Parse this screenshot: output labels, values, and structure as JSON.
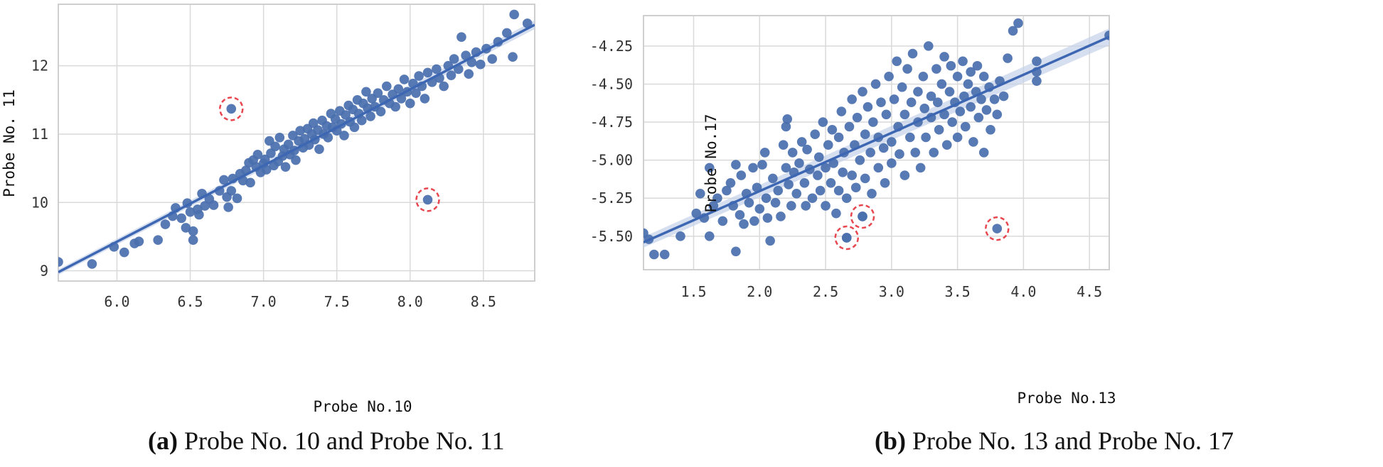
{
  "colors": {
    "point": "#4a6fae",
    "line": "#3d67b2",
    "band": "#c5d1e8",
    "grid": "#d9d9d9",
    "frame": "#cfcfcf",
    "highlight": "#e8474f"
  },
  "chart_data": [
    {
      "type": "scatter",
      "panel_tag": "(a)",
      "panel_caption": "Probe No. 10 and Probe No. 11",
      "xlabel": "Probe No.10",
      "ylabel": "Probe No. 11",
      "xlim": [
        5.6,
        8.85
      ],
      "ylim": [
        8.85,
        12.9
      ],
      "xticks": [
        6.0,
        6.5,
        7.0,
        7.5,
        8.0,
        8.5
      ],
      "xtick_labels": [
        "6.0",
        "6.5",
        "7.0",
        "7.5",
        "8.0",
        "8.5"
      ],
      "yticks": [
        9,
        10,
        11,
        12
      ],
      "ytick_labels": [
        "9",
        "10",
        "11",
        "12"
      ],
      "grid": true,
      "fit_line": {
        "x0": 5.6,
        "y0": 8.98,
        "x1": 8.85,
        "y1": 12.6,
        "band": 0.04
      },
      "points": [
        [
          5.6,
          9.13
        ],
        [
          5.83,
          9.1
        ],
        [
          5.98,
          9.35
        ],
        [
          6.05,
          9.27
        ],
        [
          6.12,
          9.4
        ],
        [
          6.15,
          9.43
        ],
        [
          6.28,
          9.45
        ],
        [
          6.33,
          9.68
        ],
        [
          6.38,
          9.8
        ],
        [
          6.4,
          9.92
        ],
        [
          6.44,
          9.77
        ],
        [
          6.47,
          9.63
        ],
        [
          6.48,
          9.99
        ],
        [
          6.5,
          9.86
        ],
        [
          6.52,
          9.45
        ],
        [
          6.52,
          9.58
        ],
        [
          6.55,
          9.9
        ],
        [
          6.56,
          9.82
        ],
        [
          6.58,
          10.13
        ],
        [
          6.6,
          9.95
        ],
        [
          6.63,
          10.05
        ],
        [
          6.66,
          9.96
        ],
        [
          6.7,
          10.17
        ],
        [
          6.73,
          10.33
        ],
        [
          6.75,
          10.08
        ],
        [
          6.76,
          9.93
        ],
        [
          6.78,
          10.17
        ],
        [
          6.79,
          10.35
        ],
        [
          6.82,
          10.06
        ],
        [
          6.84,
          10.42
        ],
        [
          6.86,
          10.32
        ],
        [
          6.88,
          10.47
        ],
        [
          6.9,
          10.58
        ],
        [
          6.91,
          10.29
        ],
        [
          6.93,
          10.62
        ],
        [
          6.95,
          10.52
        ],
        [
          6.96,
          10.7
        ],
        [
          6.98,
          10.44
        ],
        [
          7.0,
          10.57
        ],
        [
          7.01,
          10.63
        ],
        [
          7.02,
          10.48
        ],
        [
          7.04,
          10.9
        ],
        [
          7.05,
          10.72
        ],
        [
          7.07,
          10.54
        ],
        [
          7.08,
          10.82
        ],
        [
          7.1,
          10.6
        ],
        [
          7.11,
          10.95
        ],
        [
          7.13,
          10.68
        ],
        [
          7.14,
          10.78
        ],
        [
          7.15,
          10.52
        ],
        [
          7.17,
          10.85
        ],
        [
          7.18,
          10.7
        ],
        [
          7.2,
          10.98
        ],
        [
          7.21,
          10.76
        ],
        [
          7.22,
          10.62
        ],
        [
          7.24,
          10.9
        ],
        [
          7.25,
          11.05
        ],
        [
          7.27,
          10.8
        ],
        [
          7.28,
          10.93
        ],
        [
          7.3,
          11.08
        ],
        [
          7.31,
          10.84
        ],
        [
          7.33,
          11.0
        ],
        [
          7.34,
          11.16
        ],
        [
          7.35,
          10.92
        ],
        [
          7.37,
          11.06
        ],
        [
          7.38,
          10.78
        ],
        [
          7.4,
          11.2
        ],
        [
          7.41,
          11.0
        ],
        [
          7.43,
          11.12
        ],
        [
          7.44,
          10.95
        ],
        [
          7.46,
          11.3
        ],
        [
          7.47,
          11.1
        ],
        [
          7.49,
          11.22
        ],
        [
          7.5,
          11.05
        ],
        [
          7.52,
          11.34
        ],
        [
          7.53,
          11.15
        ],
        [
          7.55,
          10.98
        ],
        [
          7.56,
          11.28
        ],
        [
          7.58,
          11.42
        ],
        [
          7.59,
          11.18
        ],
        [
          7.61,
          11.36
        ],
        [
          7.62,
          11.1
        ],
        [
          7.64,
          11.5
        ],
        [
          7.65,
          11.3
        ],
        [
          7.67,
          11.2
        ],
        [
          7.68,
          11.45
        ],
        [
          7.7,
          11.62
        ],
        [
          7.71,
          11.38
        ],
        [
          7.73,
          11.26
        ],
        [
          7.74,
          11.52
        ],
        [
          7.76,
          11.4
        ],
        [
          7.78,
          11.6
        ],
        [
          7.8,
          11.33
        ],
        [
          7.82,
          11.5
        ],
        [
          7.84,
          11.7
        ],
        [
          7.86,
          11.45
        ],
        [
          7.88,
          11.58
        ],
        [
          7.9,
          11.4
        ],
        [
          7.92,
          11.66
        ],
        [
          7.94,
          11.52
        ],
        [
          7.96,
          11.8
        ],
        [
          7.98,
          11.62
        ],
        [
          8.0,
          11.45
        ],
        [
          8.02,
          11.74
        ],
        [
          8.04,
          11.6
        ],
        [
          8.06,
          11.85
        ],
        [
          8.08,
          11.7
        ],
        [
          8.1,
          11.52
        ],
        [
          8.12,
          11.9
        ],
        [
          8.15,
          11.76
        ],
        [
          8.18,
          11.95
        ],
        [
          8.2,
          11.82
        ],
        [
          8.23,
          11.7
        ],
        [
          8.26,
          12.0
        ],
        [
          8.28,
          11.86
        ],
        [
          8.3,
          12.1
        ],
        [
          8.33,
          11.95
        ],
        [
          8.35,
          12.42
        ],
        [
          8.38,
          12.15
        ],
        [
          8.4,
          11.88
        ],
        [
          8.42,
          12.05
        ],
        [
          8.45,
          12.2
        ],
        [
          8.48,
          12.02
        ],
        [
          8.52,
          12.25
        ],
        [
          8.56,
          12.1
        ],
        [
          8.6,
          12.35
        ],
        [
          8.66,
          12.48
        ],
        [
          8.7,
          12.13
        ],
        [
          8.71,
          12.75
        ],
        [
          8.8,
          12.62
        ],
        [
          6.78,
          11.37
        ],
        [
          8.12,
          10.04
        ]
      ],
      "highlighted": [
        [
          6.78,
          11.37
        ],
        [
          8.12,
          10.04
        ]
      ]
    },
    {
      "type": "scatter",
      "panel_tag": "(b)",
      "panel_caption": "Probe No. 13 and Probe No. 17",
      "xlabel": "Probe No.13",
      "ylabel": "Probe No.17",
      "xlim": [
        1.12,
        4.65
      ],
      "ylim": [
        -5.72,
        -4.05
      ],
      "xticks": [
        1.5,
        2.0,
        2.5,
        3.0,
        3.5,
        4.0,
        4.5
      ],
      "xtick_labels": [
        "1.5",
        "2.0",
        "2.5",
        "3.0",
        "3.5",
        "4.0",
        "4.5"
      ],
      "yticks": [
        -5.5,
        -5.25,
        -5.0,
        -4.75,
        -4.5,
        -4.25
      ],
      "ytick_labels": [
        "-5.50",
        "-5.25",
        "-5.00",
        "-4.75",
        "-4.50",
        "-4.25"
      ],
      "grid": true,
      "fit_line": {
        "x0": 1.12,
        "y0": -5.54,
        "x1": 4.65,
        "y1": -4.19,
        "band": 0.035
      },
      "points": [
        [
          1.12,
          -5.48
        ],
        [
          1.16,
          -5.52
        ],
        [
          1.2,
          -5.62
        ],
        [
          1.28,
          -5.62
        ],
        [
          1.4,
          -5.5
        ],
        [
          1.52,
          -5.35
        ],
        [
          1.55,
          -5.22
        ],
        [
          1.58,
          -5.38
        ],
        [
          1.62,
          -5.05
        ],
        [
          1.62,
          -5.5
        ],
        [
          1.65,
          -5.3
        ],
        [
          1.68,
          -5.25
        ],
        [
          1.72,
          -5.4
        ],
        [
          1.75,
          -5.2
        ],
        [
          1.78,
          -5.15
        ],
        [
          1.8,
          -5.3
        ],
        [
          1.82,
          -5.6
        ],
        [
          1.82,
          -5.03
        ],
        [
          1.85,
          -5.36
        ],
        [
          1.86,
          -5.1
        ],
        [
          1.88,
          -5.42
        ],
        [
          1.9,
          -5.22
        ],
        [
          1.92,
          -5.28
        ],
        [
          1.95,
          -5.05
        ],
        [
          1.96,
          -5.4
        ],
        [
          1.98,
          -5.18
        ],
        [
          2.0,
          -5.32
        ],
        [
          2.02,
          -5.03
        ],
        [
          2.04,
          -4.95
        ],
        [
          2.05,
          -5.25
        ],
        [
          2.06,
          -5.38
        ],
        [
          2.08,
          -5.53
        ],
        [
          2.1,
          -5.12
        ],
        [
          2.12,
          -5.28
        ],
        [
          2.14,
          -5.2
        ],
        [
          2.16,
          -5.37
        ],
        [
          2.18,
          -4.9
        ],
        [
          2.2,
          -5.05
        ],
        [
          2.2,
          -4.78
        ],
        [
          2.21,
          -4.73
        ],
        [
          2.22,
          -5.16
        ],
        [
          2.24,
          -5.3
        ],
        [
          2.25,
          -4.95
        ],
        [
          2.26,
          -5.08
        ],
        [
          2.28,
          -5.22
        ],
        [
          2.3,
          -5.02
        ],
        [
          2.32,
          -4.88
        ],
        [
          2.34,
          -5.15
        ],
        [
          2.35,
          -5.3
        ],
        [
          2.36,
          -4.93
        ],
        [
          2.38,
          -5.06
        ],
        [
          2.4,
          -5.25
        ],
        [
          2.42,
          -4.83
        ],
        [
          2.44,
          -5.1
        ],
        [
          2.45,
          -4.98
        ],
        [
          2.46,
          -5.2
        ],
        [
          2.48,
          -4.75
        ],
        [
          2.5,
          -5.05
        ],
        [
          2.5,
          -5.3
        ],
        [
          2.52,
          -4.9
        ],
        [
          2.54,
          -5.15
        ],
        [
          2.55,
          -4.8
        ],
        [
          2.56,
          -5.02
        ],
        [
          2.58,
          -5.35
        ],
        [
          2.6,
          -4.85
        ],
        [
          2.6,
          -5.2
        ],
        [
          2.62,
          -4.68
        ],
        [
          2.63,
          -5.08
        ],
        [
          2.64,
          -4.95
        ],
        [
          2.66,
          -5.25
        ],
        [
          2.66,
          -5.51
        ],
        [
          2.68,
          -4.78
        ],
        [
          2.7,
          -5.1
        ],
        [
          2.7,
          -4.6
        ],
        [
          2.72,
          -4.9
        ],
        [
          2.73,
          -5.18
        ],
        [
          2.74,
          -4.72
        ],
        [
          2.76,
          -5.0
        ],
        [
          2.78,
          -4.55
        ],
        [
          2.78,
          -5.37
        ],
        [
          2.8,
          -4.83
        ],
        [
          2.8,
          -5.12
        ],
        [
          2.82,
          -4.65
        ],
        [
          2.84,
          -4.95
        ],
        [
          2.85,
          -5.22
        ],
        [
          2.86,
          -4.75
        ],
        [
          2.88,
          -4.5
        ],
        [
          2.9,
          -5.05
        ],
        [
          2.9,
          -4.85
        ],
        [
          2.92,
          -4.62
        ],
        [
          2.94,
          -4.92
        ],
        [
          2.95,
          -5.15
        ],
        [
          2.96,
          -4.7
        ],
        [
          2.98,
          -4.45
        ],
        [
          3.0,
          -4.88
        ],
        [
          3.0,
          -5.02
        ],
        [
          3.02,
          -4.6
        ],
        [
          3.04,
          -4.35
        ],
        [
          3.05,
          -4.78
        ],
        [
          3.06,
          -4.96
        ],
        [
          3.08,
          -4.52
        ],
        [
          3.1,
          -4.7
        ],
        [
          3.1,
          -5.1
        ],
        [
          3.12,
          -4.4
        ],
        [
          3.14,
          -4.85
        ],
        [
          3.15,
          -4.62
        ],
        [
          3.16,
          -4.3
        ],
        [
          3.18,
          -4.95
        ],
        [
          3.2,
          -4.55
        ],
        [
          3.2,
          -4.75
        ],
        [
          3.22,
          -5.05
        ],
        [
          3.24,
          -4.45
        ],
        [
          3.25,
          -4.66
        ],
        [
          3.26,
          -4.85
        ],
        [
          3.28,
          -4.25
        ],
        [
          3.3,
          -4.58
        ],
        [
          3.3,
          -4.72
        ],
        [
          3.32,
          -4.95
        ],
        [
          3.34,
          -4.4
        ],
        [
          3.35,
          -4.62
        ],
        [
          3.36,
          -4.8
        ],
        [
          3.38,
          -4.5
        ],
        [
          3.4,
          -4.7
        ],
        [
          3.4,
          -4.32
        ],
        [
          3.42,
          -4.9
        ],
        [
          3.44,
          -4.55
        ],
        [
          3.45,
          -4.38
        ],
        [
          3.46,
          -4.75
        ],
        [
          3.48,
          -4.62
        ],
        [
          3.5,
          -4.45
        ],
        [
          3.5,
          -4.85
        ],
        [
          3.52,
          -4.68
        ],
        [
          3.54,
          -4.35
        ],
        [
          3.55,
          -4.58
        ],
        [
          3.56,
          -4.78
        ],
        [
          3.58,
          -4.5
        ],
        [
          3.6,
          -4.65
        ],
        [
          3.6,
          -4.42
        ],
        [
          3.62,
          -4.88
        ],
        [
          3.64,
          -4.55
        ],
        [
          3.65,
          -4.38
        ],
        [
          3.66,
          -4.72
        ],
        [
          3.68,
          -4.6
        ],
        [
          3.7,
          -4.45
        ],
        [
          3.7,
          -4.95
        ],
        [
          3.72,
          -4.67
        ],
        [
          3.74,
          -4.52
        ],
        [
          3.75,
          -4.8
        ],
        [
          3.78,
          -4.6
        ],
        [
          3.8,
          -4.7
        ],
        [
          3.82,
          -4.48
        ],
        [
          3.85,
          -4.58
        ],
        [
          3.88,
          -4.33
        ],
        [
          3.92,
          -4.15
        ],
        [
          3.96,
          -4.1
        ],
        [
          4.1,
          -4.35
        ],
        [
          4.1,
          -4.48
        ],
        [
          4.1,
          -4.42
        ],
        [
          4.65,
          -4.18
        ],
        [
          2.66,
          -5.51
        ],
        [
          2.78,
          -5.37
        ],
        [
          3.8,
          -5.45
        ]
      ],
      "highlighted": [
        [
          2.66,
          -5.51
        ],
        [
          2.78,
          -5.37
        ],
        [
          3.8,
          -5.45
        ]
      ]
    }
  ]
}
